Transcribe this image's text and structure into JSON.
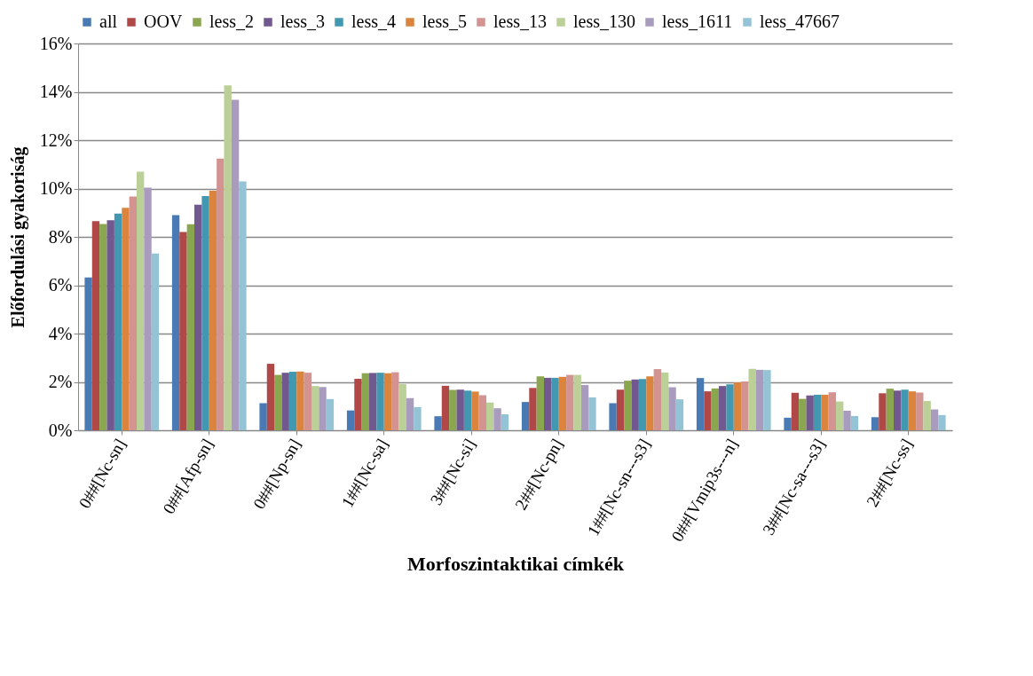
{
  "chart_data": {
    "type": "bar",
    "xlabel": "Morfoszintaktikai címkék",
    "ylabel": "Előfordulási gyakoriság",
    "categories": [
      "0##[Nc-sn]",
      "0##[Afp-sn]",
      "0##[Np-sn]",
      "1##[Nc-sa]",
      "3##[Nc-si]",
      "2##[Nc-pn]",
      "1##[Nc-sn---s3]",
      "0##[Vmip3s---n]",
      "3##[Nc-sa---s3]",
      "2##[Nc-ss]"
    ],
    "series": [
      {
        "name": "all",
        "color": "#4a7ab4",
        "values": [
          6.32,
          8.9,
          1.12,
          0.82,
          0.58,
          1.17,
          1.12,
          2.16,
          0.52,
          0.54
        ]
      },
      {
        "name": "OOV",
        "color": "#b04848",
        "values": [
          8.65,
          8.2,
          2.75,
          2.13,
          1.84,
          1.75,
          1.68,
          1.61,
          1.55,
          1.53
        ]
      },
      {
        "name": "less_2",
        "color": "#8aa64e",
        "values": [
          8.53,
          8.52,
          2.29,
          2.36,
          1.67,
          2.23,
          2.05,
          1.73,
          1.3,
          1.72
        ]
      },
      {
        "name": "less_3",
        "color": "#71588f",
        "values": [
          8.69,
          9.33,
          2.38,
          2.37,
          1.68,
          2.17,
          2.1,
          1.83,
          1.44,
          1.64
        ]
      },
      {
        "name": "less_4",
        "color": "#4298b0",
        "values": [
          8.96,
          9.69,
          2.42,
          2.38,
          1.64,
          2.17,
          2.12,
          1.9,
          1.47,
          1.68
        ]
      },
      {
        "name": "less_5",
        "color": "#db843d",
        "values": [
          9.2,
          9.91,
          2.43,
          2.36,
          1.6,
          2.21,
          2.23,
          1.98,
          1.47,
          1.61
        ]
      },
      {
        "name": "less_13",
        "color": "#d29391",
        "values": [
          9.67,
          11.24,
          2.38,
          2.4,
          1.45,
          2.29,
          2.53,
          2.02,
          1.57,
          1.56
        ]
      },
      {
        "name": "less_130",
        "color": "#bbd097",
        "values": [
          10.7,
          14.27,
          1.83,
          1.91,
          1.15,
          2.29,
          2.39,
          2.54,
          1.19,
          1.21
        ]
      },
      {
        "name": "less_1611",
        "color": "#a99bbd",
        "values": [
          10.04,
          13.67,
          1.79,
          1.33,
          0.91,
          1.87,
          1.78,
          2.5,
          0.81,
          0.86
        ]
      },
      {
        "name": "less_47667",
        "color": "#93c3d5",
        "values": [
          7.31,
          10.29,
          1.29,
          0.96,
          0.66,
          1.36,
          1.28,
          2.49,
          0.59,
          0.63
        ]
      }
    ],
    "ylim": [
      0,
      16
    ],
    "yticks": [
      {
        "value": 0,
        "label": "0%"
      },
      {
        "value": 2,
        "label": "2%"
      },
      {
        "value": 4,
        "label": "4%"
      },
      {
        "value": 6,
        "label": "6%"
      },
      {
        "value": 8,
        "label": "8%"
      },
      {
        "value": 10,
        "label": "10%"
      },
      {
        "value": 12,
        "label": "12%"
      },
      {
        "value": 14,
        "label": "14%"
      },
      {
        "value": 16,
        "label": "16%"
      }
    ],
    "grid": "y",
    "legend": "top"
  }
}
